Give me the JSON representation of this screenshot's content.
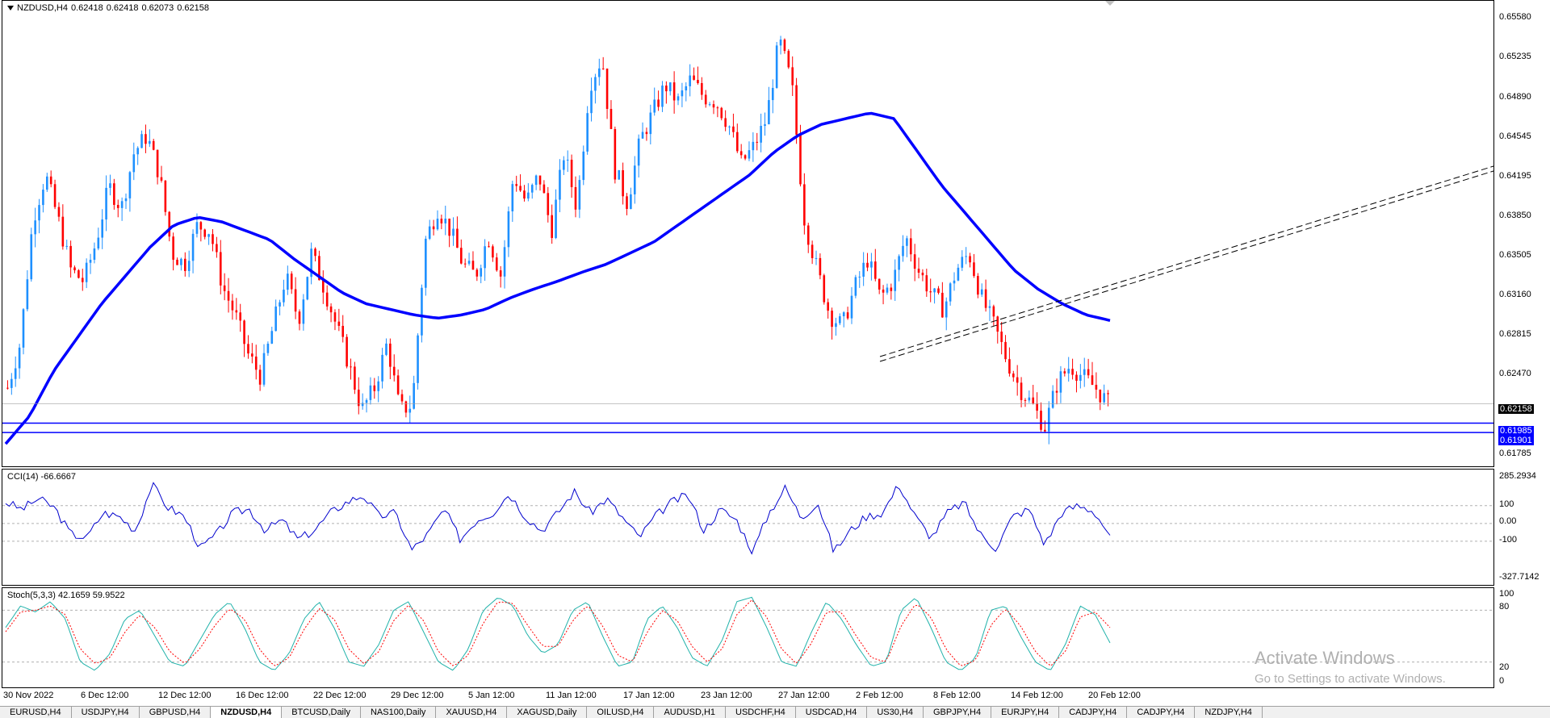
{
  "app": {
    "symbol_info": "NZDUSD,H4",
    "ohlc": [
      "0.62418",
      "0.62418",
      "0.62073",
      "0.62158"
    ]
  },
  "colors": {
    "bull": "#1e90ff",
    "bear": "#ff0000",
    "ma": "#0000ff",
    "cci": "#0000cd",
    "stoch_main": "#20b2aa",
    "stoch_signal": "#ff0000",
    "support_line": "#0000ff",
    "trendline": "#000000"
  },
  "price_axis": {
    "ticks": [
      "0.65580",
      "0.65235",
      "0.64890",
      "0.64545",
      "0.64195",
      "0.63850",
      "0.63505",
      "0.63160",
      "0.62815",
      "0.62470",
      "0.61785"
    ],
    "current_price": "0.62158",
    "support_levels": [
      "0.61985",
      "0.61901"
    ]
  },
  "time_axis": {
    "labels": [
      "30 Nov 2022",
      "6 Dec 12:00",
      "12 Dec 12:00",
      "16 Dec 12:00",
      "22 Dec 12:00",
      "29 Dec 12:00",
      "5 Jan 12:00",
      "11 Jan 12:00",
      "17 Jan 12:00",
      "23 Jan 12:00",
      "27 Jan 12:00",
      "2 Feb 12:00",
      "8 Feb 12:00",
      "14 Feb 12:00",
      "20 Feb 12:00"
    ]
  },
  "cci": {
    "title": "CCI(14) -66.6667",
    "levels": [
      "285.2934",
      "100",
      "0.00",
      "-100",
      "-327.7142"
    ],
    "value": -66.6667
  },
  "stoch": {
    "title": "Stoch(5,3,3) 42.1659 59.9522",
    "levels": [
      "100",
      "80",
      "20",
      "0"
    ],
    "main": 42.1659,
    "signal": 59.9522
  },
  "chart_data": [
    {
      "type": "candlestick",
      "title": "NZDUSD,H4",
      "y_range": [
        0.616,
        0.6575
      ],
      "x_labels": [
        "30 Nov 2022",
        "6 Dec 12:00",
        "12 Dec 12:00",
        "16 Dec 12:00",
        "22 Dec 12:00",
        "29 Dec 12:00",
        "5 Jan 12:00",
        "11 Jan 12:00",
        "17 Jan 12:00",
        "23 Jan 12:00",
        "27 Jan 12:00",
        "2 Feb 12:00",
        "8 Feb 12:00",
        "14 Feb 12:00",
        "20 Feb 12:00"
      ],
      "close_path": [
        0.623,
        0.627,
        0.638,
        0.642,
        0.638,
        0.6335,
        0.6325,
        0.636,
        0.641,
        0.639,
        0.644,
        0.6455,
        0.642,
        0.635,
        0.634,
        0.6375,
        0.637,
        0.632,
        0.6295,
        0.626,
        0.624,
        0.6285,
        0.633,
        0.629,
        0.635,
        0.632,
        0.6285,
        0.625,
        0.621,
        0.623,
        0.627,
        0.621,
        0.6215,
        0.636,
        0.639,
        0.637,
        0.634,
        0.633,
        0.6365,
        0.633,
        0.642,
        0.6395,
        0.642,
        0.637,
        0.644,
        0.639,
        0.65,
        0.6525,
        0.6425,
        0.6395,
        0.645,
        0.6475,
        0.65,
        0.6485,
        0.6505,
        0.649,
        0.6485,
        0.6465,
        0.643,
        0.6445,
        0.647,
        0.654,
        0.65,
        0.638,
        0.6335,
        0.6295,
        0.6285,
        0.632,
        0.6345,
        0.631,
        0.6325,
        0.6365,
        0.6335,
        0.6315,
        0.63,
        0.6335,
        0.635,
        0.631,
        0.6285,
        0.6255,
        0.623,
        0.6215,
        0.6195,
        0.6235,
        0.625,
        0.624,
        0.623,
        0.6216
      ],
      "ma_path": [
        0.618,
        0.6205,
        0.6245,
        0.6275,
        0.6305,
        0.633,
        0.6355,
        0.6375,
        0.6382,
        0.6378,
        0.637,
        0.6362,
        0.6345,
        0.633,
        0.6315,
        0.6305,
        0.63,
        0.6295,
        0.6292,
        0.6295,
        0.63,
        0.631,
        0.6318,
        0.6325,
        0.6333,
        0.634,
        0.635,
        0.636,
        0.6375,
        0.639,
        0.6405,
        0.642,
        0.644,
        0.6455,
        0.6465,
        0.647,
        0.6475,
        0.647,
        0.644,
        0.641,
        0.6385,
        0.636,
        0.6335,
        0.6318,
        0.6305,
        0.6295,
        0.629
      ],
      "support_levels": [
        0.61985,
        0.61901
      ],
      "current_price": 0.62158
    },
    {
      "type": "line",
      "title": "CCI(14) -66.6667",
      "y_range": [
        -327.7142,
        285.2934
      ],
      "levels": [
        100,
        0,
        -100
      ],
      "values": [
        120,
        80,
        140,
        90,
        -60,
        -80,
        60,
        40,
        -40,
        220,
        90,
        40,
        -140,
        -60,
        60,
        80,
        -40,
        20,
        -90,
        -40,
        60,
        120,
        160,
        40,
        60,
        -150,
        -60,
        80,
        -90,
        20,
        60,
        170,
        40,
        -40,
        60,
        180,
        60,
        140,
        30,
        -80,
        40,
        120,
        160,
        -40,
        80,
        20,
        -160,
        60,
        200,
        30,
        120,
        -160,
        -40,
        40,
        60,
        220,
        40,
        -80,
        60,
        120,
        -60,
        -140,
        40,
        80,
        -120,
        60,
        100,
        70,
        -66.6667
      ]
    },
    {
      "type": "line",
      "title": "Stoch(5,3,3) 42.1659 59.9522",
      "y_range": [
        0,
        100
      ],
      "levels": [
        80,
        20
      ],
      "series": [
        {
          "name": "main",
          "values": [
            60,
            85,
            78,
            90,
            70,
            20,
            10,
            30,
            70,
            80,
            50,
            20,
            15,
            45,
            75,
            90,
            60,
            20,
            10,
            30,
            70,
            90,
            60,
            20,
            15,
            40,
            80,
            90,
            55,
            20,
            10,
            35,
            80,
            95,
            85,
            50,
            30,
            40,
            80,
            90,
            50,
            15,
            20,
            70,
            85,
            60,
            25,
            15,
            45,
            90,
            95,
            60,
            20,
            15,
            55,
            90,
            70,
            40,
            15,
            20,
            80,
            95,
            60,
            20,
            10,
            25,
            80,
            85,
            50,
            20,
            10,
            40,
            85,
            75,
            42.1659
          ]
        },
        {
          "name": "signal",
          "values": [
            55,
            78,
            80,
            85,
            75,
            35,
            18,
            25,
            55,
            75,
            60,
            32,
            18,
            35,
            62,
            82,
            70,
            35,
            15,
            25,
            58,
            82,
            70,
            35,
            18,
            32,
            68,
            86,
            68,
            32,
            15,
            28,
            65,
            90,
            88,
            62,
            38,
            38,
            68,
            86,
            62,
            28,
            20,
            55,
            80,
            68,
            38,
            20,
            35,
            75,
            92,
            72,
            35,
            18,
            42,
            78,
            78,
            50,
            25,
            20,
            62,
            88,
            72,
            35,
            15,
            22,
            62,
            82,
            62,
            32,
            15,
            32,
            72,
            78,
            59.9522
          ]
        }
      ]
    }
  ],
  "tabs": [
    "EURUSD,H4",
    "USDJPY,H4",
    "GBPUSD,H4",
    "NZDUSD,H4",
    "BTCUSD,Daily",
    "NAS100,Daily",
    "XAUUSD,H4",
    "XAGUSD,Daily",
    "OILUSD,H4",
    "AUDUSD,H1",
    "USDCHF,H4",
    "USDCAD,H4",
    "US30,H4",
    "GBPJPY,H4",
    "EURJPY,H4",
    "CADJPY,H4",
    "CADJPY,H4",
    "NZDJPY,H4"
  ],
  "active_tab": 3,
  "watermark": {
    "line1": "Activate Windows",
    "line2": "Go to Settings to activate Windows."
  }
}
